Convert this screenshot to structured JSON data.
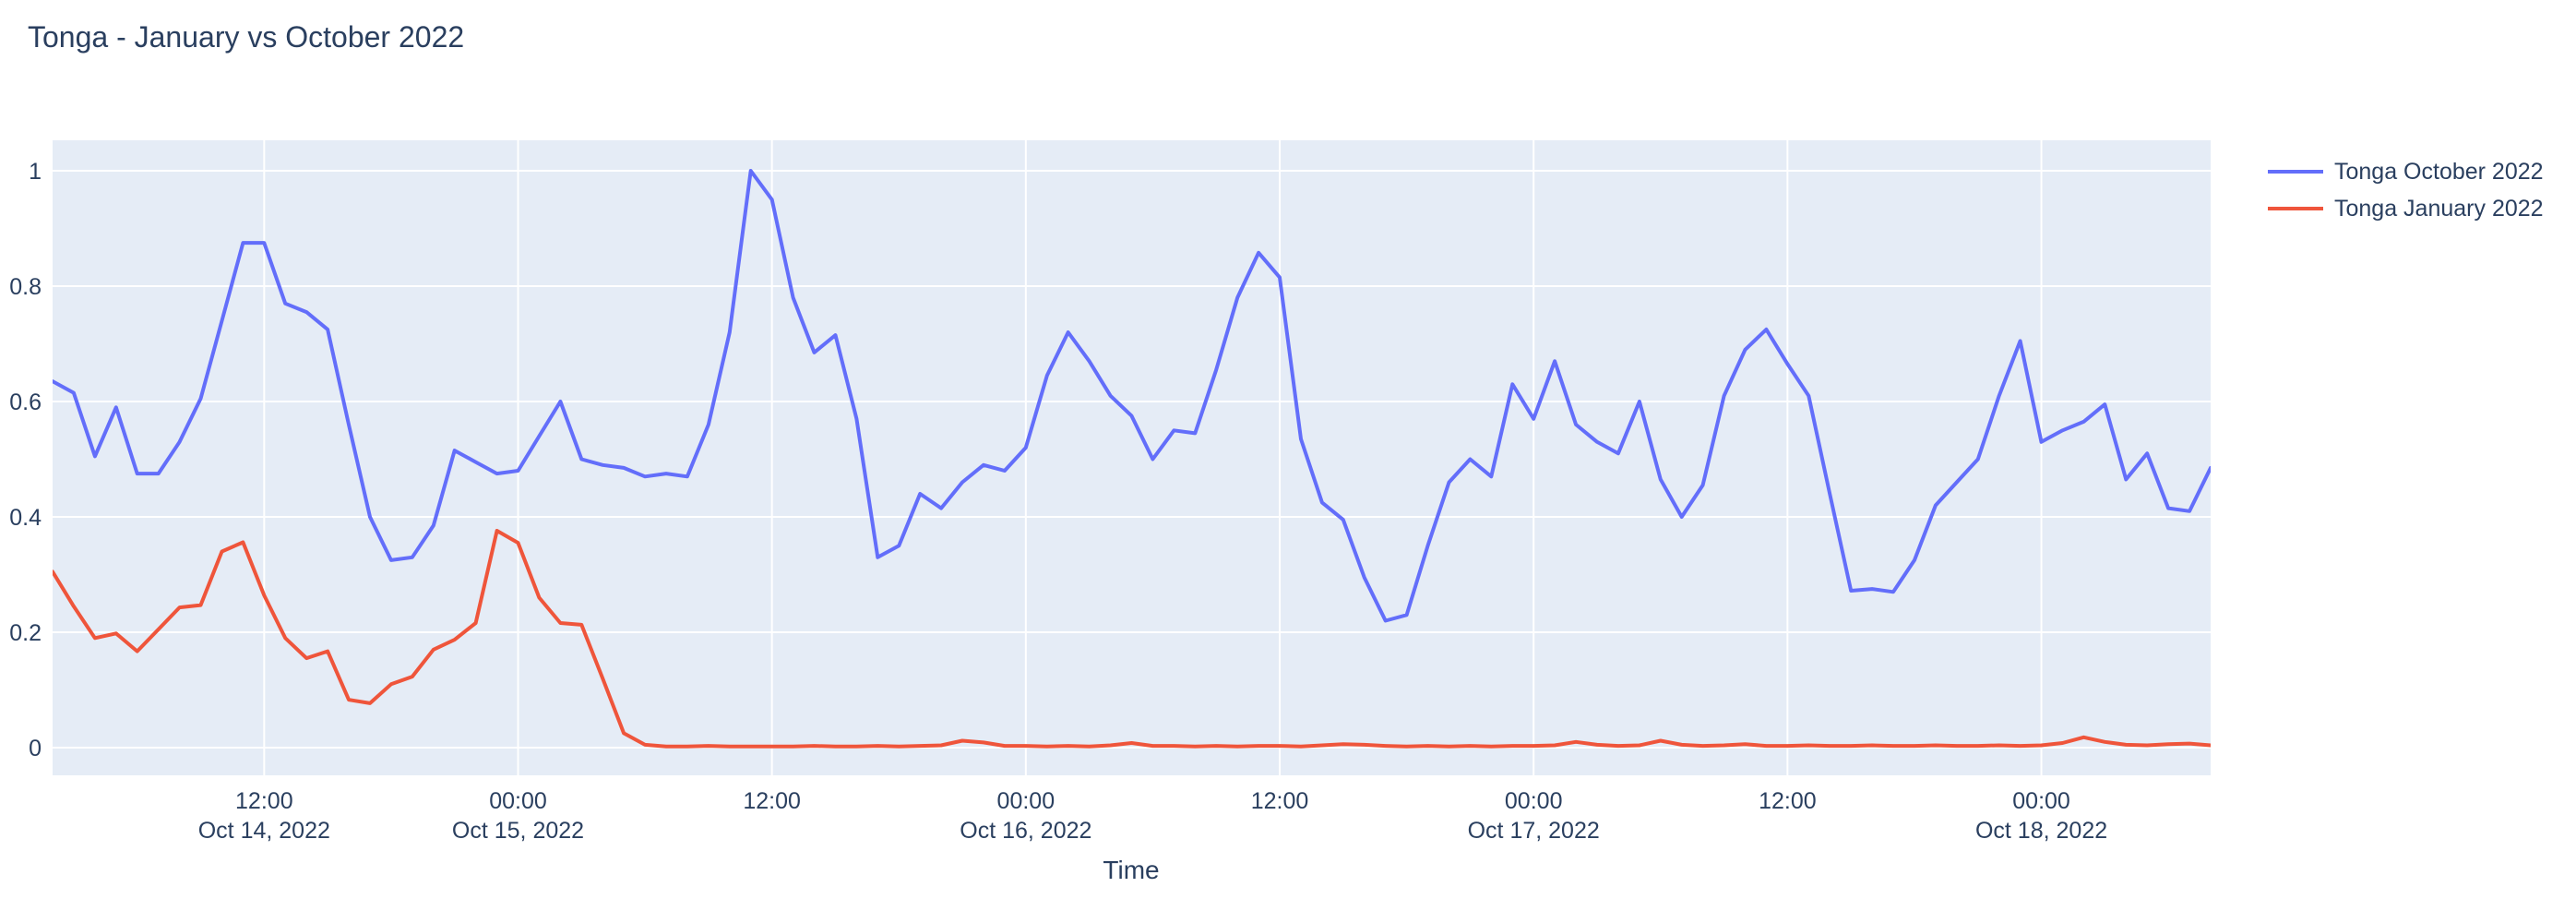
{
  "page": {
    "background": "#ffffff",
    "font_color": "#2a3f5f"
  },
  "chart_data": {
    "type": "line",
    "title": "Tonga - January vs October 2022",
    "xlabel": "Time",
    "ylabel": "",
    "grid": true,
    "legend_position": "outside-top-right",
    "plot_bg_color": "#E5ECF6",
    "grid_color": "#FFFFFF",
    "font_color": "#2a3f5f",
    "x_start": "2022-10-14 02:00",
    "x_end": "2022-10-18 08:00",
    "x_step_hours": 1,
    "ylim": [
      -0.05,
      1.05
    ],
    "ytick_values": [
      0,
      0.2,
      0.4,
      0.6,
      0.8,
      1
    ],
    "ytick_labels": [
      "0",
      "0.2",
      "0.4",
      "0.6",
      "0.8",
      "1"
    ],
    "xticks": [
      {
        "hour_offset": 10,
        "time": "12:00",
        "date": "Oct 14, 2022"
      },
      {
        "hour_offset": 22,
        "time": "00:00",
        "date": "Oct 15, 2022"
      },
      {
        "hour_offset": 34,
        "time": "12:00",
        "date": ""
      },
      {
        "hour_offset": 46,
        "time": "00:00",
        "date": "Oct 16, 2022"
      },
      {
        "hour_offset": 58,
        "time": "12:00",
        "date": ""
      },
      {
        "hour_offset": 70,
        "time": "00:00",
        "date": "Oct 17, 2022"
      },
      {
        "hour_offset": 82,
        "time": "12:00",
        "date": ""
      },
      {
        "hour_offset": 94,
        "time": "00:00",
        "date": "Oct 18, 2022"
      }
    ],
    "series": [
      {
        "name": "Tonga October 2022",
        "color": "#636EFA",
        "values": [
          0.635,
          0.615,
          0.505,
          0.59,
          0.475,
          0.475,
          0.53,
          0.605,
          0.74,
          0.875,
          0.875,
          0.77,
          0.755,
          0.725,
          0.56,
          0.4,
          0.325,
          0.33,
          0.385,
          0.515,
          0.495,
          0.475,
          0.48,
          0.54,
          0.6,
          0.5,
          0.49,
          0.485,
          0.47,
          0.475,
          0.47,
          0.56,
          0.72,
          1.0,
          0.95,
          0.78,
          0.685,
          0.715,
          0.57,
          0.33,
          0.35,
          0.44,
          0.415,
          0.46,
          0.49,
          0.48,
          0.52,
          0.645,
          0.72,
          0.67,
          0.61,
          0.575,
          0.5,
          0.55,
          0.545,
          0.655,
          0.78,
          0.858,
          0.815,
          0.535,
          0.425,
          0.395,
          0.295,
          0.22,
          0.23,
          0.35,
          0.46,
          0.5,
          0.47,
          0.63,
          0.57,
          0.67,
          0.56,
          0.53,
          0.51,
          0.6,
          0.465,
          0.4,
          0.455,
          0.61,
          0.69,
          0.725,
          0.665,
          0.61,
          0.44,
          0.272,
          0.275,
          0.27,
          0.325,
          0.42,
          0.46,
          0.5,
          0.61,
          0.705,
          0.53,
          0.55,
          0.565,
          0.595,
          0.465,
          0.51,
          0.415,
          0.41,
          0.485
        ]
      },
      {
        "name": "Tonga January 2022",
        "color": "#EF553B",
        "values": [
          0.305,
          0.245,
          0.19,
          0.198,
          0.167,
          0.205,
          0.243,
          0.247,
          0.34,
          0.356,
          0.264,
          0.19,
          0.155,
          0.167,
          0.083,
          0.077,
          0.11,
          0.123,
          0.17,
          0.187,
          0.216,
          0.376,
          0.355,
          0.26,
          0.216,
          0.213,
          0.12,
          0.025,
          0.005,
          0.002,
          0.002,
          0.003,
          0.002,
          0.002,
          0.002,
          0.002,
          0.003,
          0.002,
          0.002,
          0.003,
          0.002,
          0.003,
          0.004,
          0.012,
          0.009,
          0.003,
          0.003,
          0.002,
          0.003,
          0.002,
          0.004,
          0.008,
          0.003,
          0.003,
          0.002,
          0.003,
          0.002,
          0.003,
          0.003,
          0.002,
          0.004,
          0.006,
          0.005,
          0.003,
          0.002,
          0.003,
          0.002,
          0.003,
          0.002,
          0.003,
          0.003,
          0.004,
          0.01,
          0.005,
          0.003,
          0.004,
          0.012,
          0.005,
          0.003,
          0.004,
          0.006,
          0.003,
          0.003,
          0.004,
          0.003,
          0.003,
          0.004,
          0.003,
          0.003,
          0.004,
          0.003,
          0.003,
          0.004,
          0.003,
          0.004,
          0.008,
          0.018,
          0.01,
          0.005,
          0.004,
          0.006,
          0.007,
          0.004
        ]
      }
    ]
  }
}
